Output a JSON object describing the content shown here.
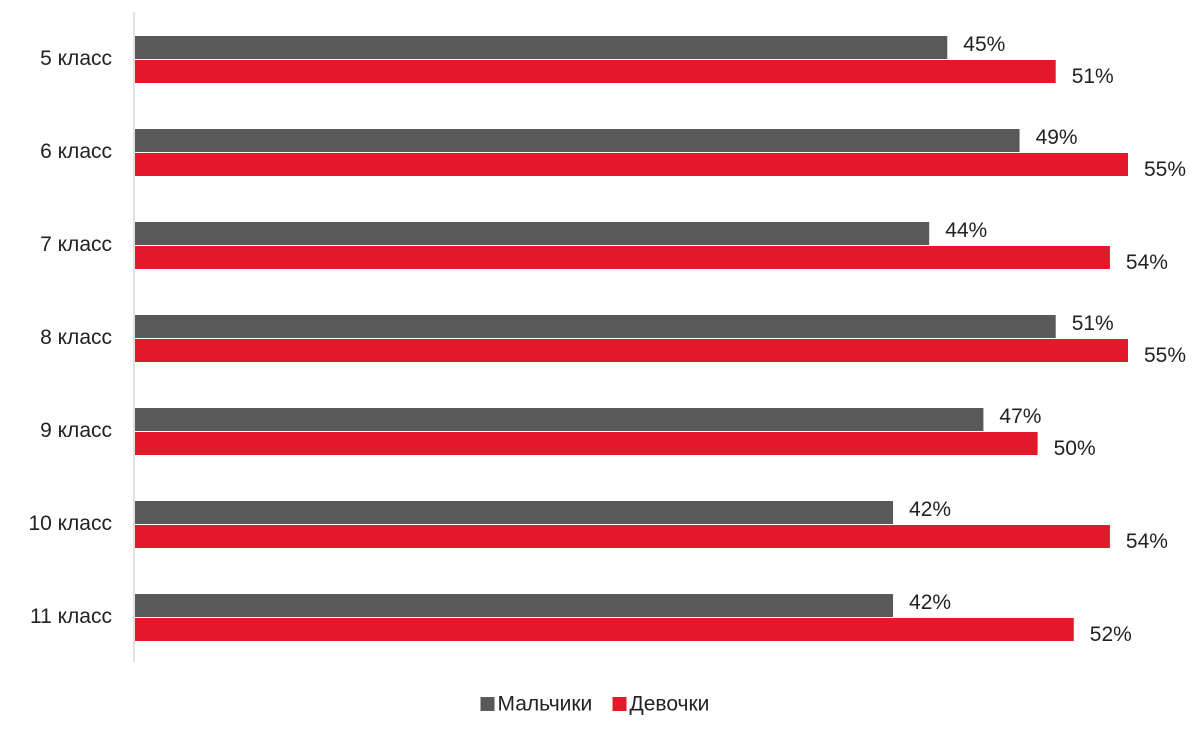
{
  "chart_data": {
    "type": "bar",
    "orientation": "horizontal",
    "categories": [
      "5 класс",
      "6 класс",
      "7 класс",
      "8 класс",
      "9 класс",
      "10 класс",
      "11 класс"
    ],
    "series": [
      {
        "name": "Мальчики",
        "color": "#595959",
        "values": [
          45,
          49,
          44,
          51,
          47,
          42,
          42
        ],
        "labels": [
          "45%",
          "49%",
          "44%",
          "51%",
          "47%",
          "42%",
          "42%"
        ]
      },
      {
        "name": "Девочки",
        "color": "#e3192b",
        "values": [
          51,
          55,
          54,
          55,
          50,
          54,
          52
        ],
        "labels": [
          "51%",
          "55%",
          "54%",
          "55%",
          "50%",
          "54%",
          "52%"
        ]
      }
    ],
    "xlim": [
      0,
      55
    ],
    "grid": false,
    "legend_position": "bottom-center",
    "title": "",
    "xlabel": "",
    "ylabel": ""
  }
}
